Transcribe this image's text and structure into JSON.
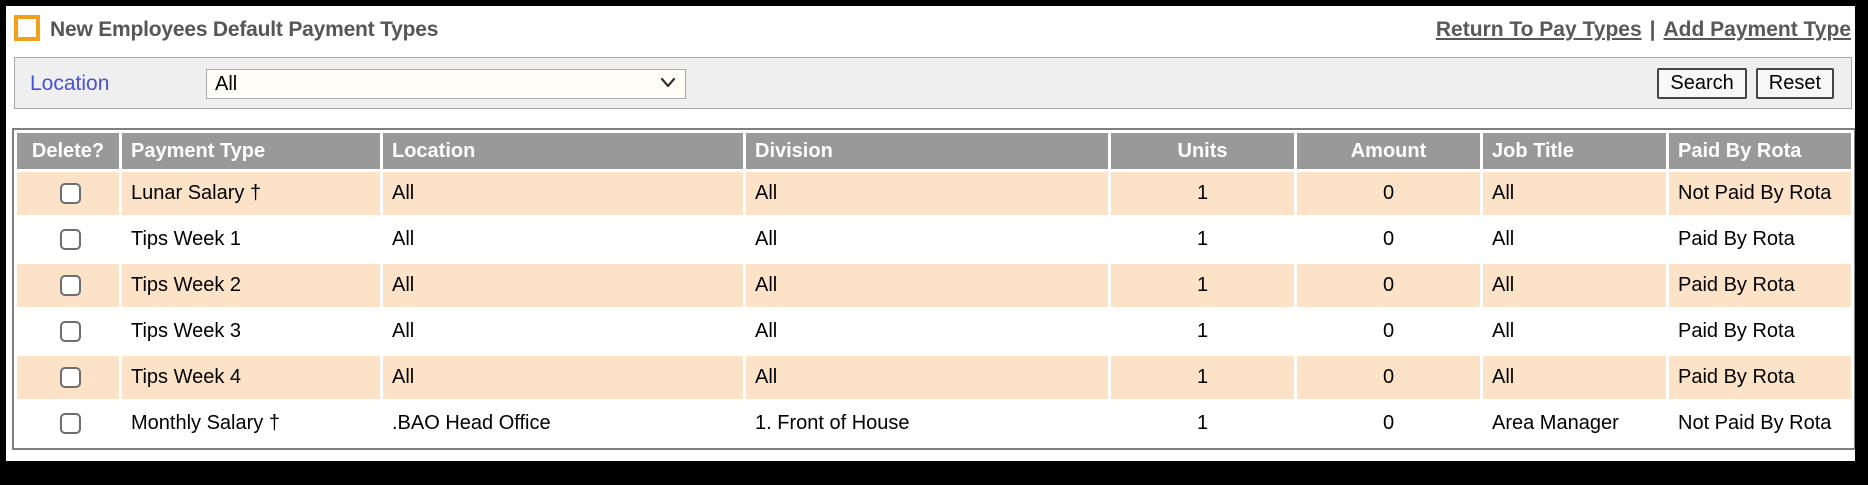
{
  "page": {
    "title": "New Employees Default Payment Types"
  },
  "nav": {
    "links": [
      "Return To Pay Types",
      "Add Payment Type"
    ],
    "separator": "|"
  },
  "filter": {
    "label": "Location",
    "selected": "All",
    "buttons": {
      "search": "Search",
      "reset": "Reset"
    }
  },
  "table": {
    "columns": [
      "Delete?",
      "Payment Type",
      "Location",
      "Division",
      "Units",
      "Amount",
      "Job Title",
      "Paid By Rota"
    ],
    "column_keys": [
      "payment-type",
      "location",
      "division",
      "units",
      "amount",
      "job-title",
      "paid-by-rota"
    ],
    "rows": [
      {
        "highlighted": true,
        "cells": [
          "Lunar Salary †",
          "All",
          "All",
          "1",
          "0",
          "All",
          "Not Paid By Rota"
        ]
      },
      {
        "highlighted": false,
        "cells": [
          "Tips Week 1",
          "All",
          "All",
          "1",
          "0",
          "All",
          "Paid By Rota"
        ]
      },
      {
        "highlighted": true,
        "cells": [
          "Tips Week 2",
          "All",
          "All",
          "1",
          "0",
          "All",
          "Paid By Rota"
        ]
      },
      {
        "highlighted": false,
        "cells": [
          "Tips Week 3",
          "All",
          "All",
          "1",
          "0",
          "All",
          "Paid By Rota"
        ]
      },
      {
        "highlighted": true,
        "cells": [
          "Tips Week 4",
          "All",
          "All",
          "1",
          "0",
          "All",
          "Paid By Rota"
        ]
      },
      {
        "highlighted": false,
        "cells": [
          "Monthly Salary †",
          ".BAO Head Office",
          "1. Front of House",
          "1",
          "0",
          "Area Manager",
          "Not Paid By Rota"
        ]
      }
    ]
  },
  "colors": {
    "accent_orange": "#f0a019",
    "row_highlight": "#fce3c7",
    "table_header_gray": "#999999",
    "link_gray": "#58585b",
    "label_blue": "#4753d6",
    "filter_bar_gray": "#efefef"
  }
}
